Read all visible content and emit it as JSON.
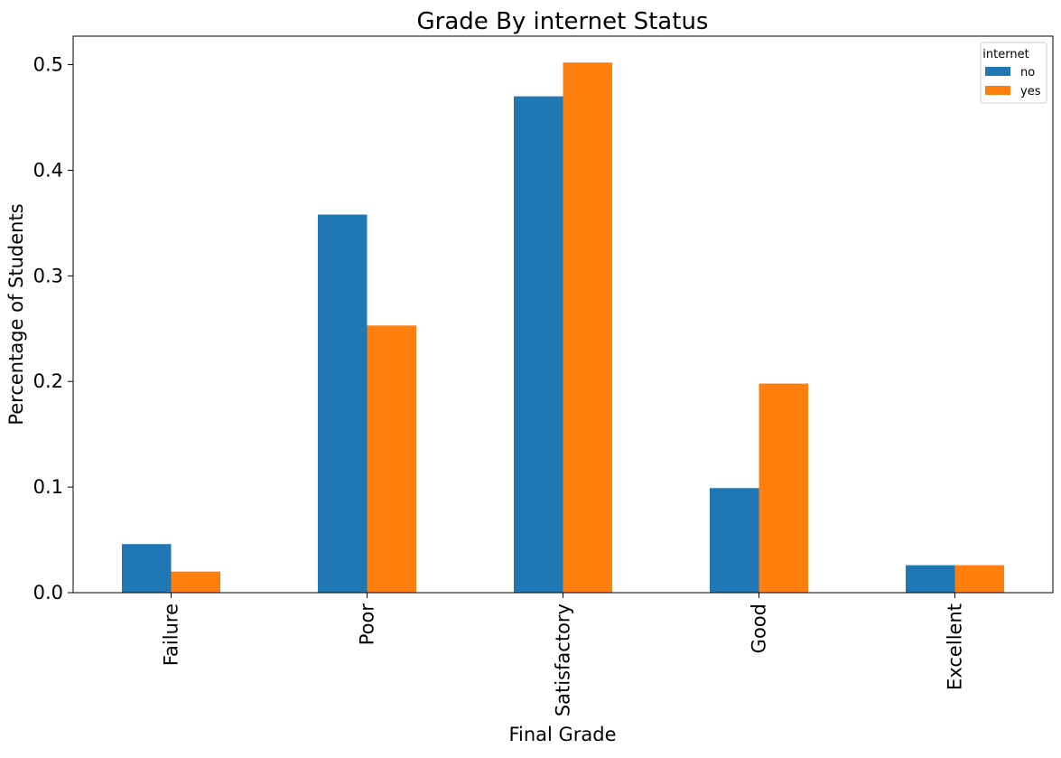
{
  "chart_data": {
    "type": "bar",
    "title": "Grade By internet Status",
    "xlabel": "Final Grade",
    "ylabel": "Percentage of Students",
    "categories": [
      "Failure",
      "Poor",
      "Satisfactory",
      "Good",
      "Excellent"
    ],
    "series": [
      {
        "name": "no",
        "color": "#1f77b4",
        "values": [
          0.046,
          0.358,
          0.47,
          0.099,
          0.026
        ]
      },
      {
        "name": "yes",
        "color": "#ff7f0e",
        "values": [
          0.02,
          0.253,
          0.502,
          0.198,
          0.026
        ]
      }
    ],
    "ylim": [
      0,
      0.527
    ],
    "yticks": [
      0.0,
      0.1,
      0.2,
      0.3,
      0.4,
      0.5
    ],
    "ytick_labels": [
      "0.0",
      "0.1",
      "0.2",
      "0.3",
      "0.4",
      "0.5"
    ],
    "legend": {
      "title": "internet",
      "placement": "top-right"
    },
    "grid": false
  }
}
